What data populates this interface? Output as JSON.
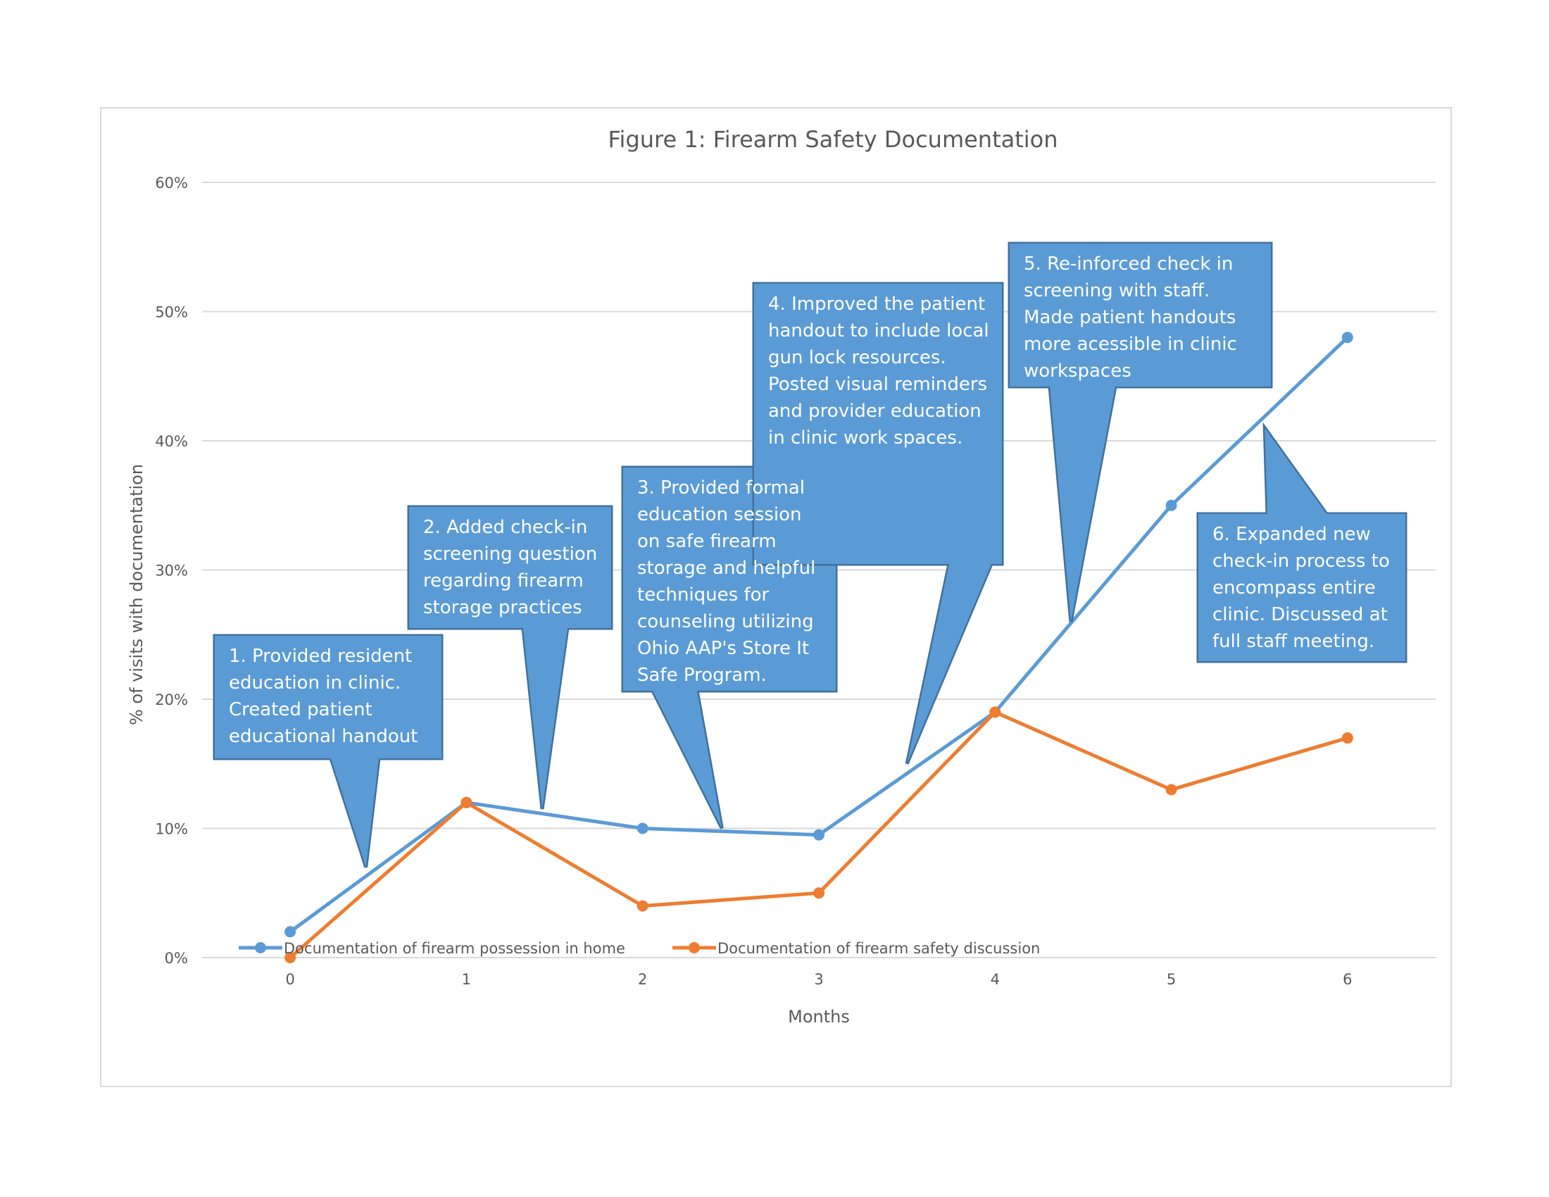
{
  "chart_data": {
    "type": "line",
    "title": "Figure 1: Firearm Safety Documentation",
    "xlabel": "Months",
    "ylabel": "% of visits with documentation",
    "x": [
      0,
      1,
      2,
      3,
      4,
      5,
      6
    ],
    "xlim": [
      -0.5,
      6.5
    ],
    "ylim": [
      0,
      0.6
    ],
    "y_ticks": [
      0,
      0.1,
      0.2,
      0.3,
      0.4,
      0.5,
      0.6
    ],
    "y_tick_labels": [
      "0%",
      "10%",
      "20%",
      "30%",
      "40%",
      "50%",
      "60%"
    ],
    "x_tick_labels": [
      "0",
      "1",
      "2",
      "3",
      "4",
      "5",
      "6"
    ],
    "grid": "horizontal",
    "legend_position": "bottom",
    "series": [
      {
        "name": "Documentation of firearm possession in home",
        "color": "#5b9bd5",
        "values": [
          0.02,
          0.12,
          0.1,
          0.095,
          0.19,
          0.35,
          0.48
        ]
      },
      {
        "name": "Documentation of firearm safety discussion",
        "color": "#ed7d31",
        "values": [
          0.0,
          0.12,
          0.04,
          0.05,
          0.19,
          0.13,
          0.17
        ]
      }
    ],
    "annotations": [
      {
        "text": "1. Provided resident\neducation in clinic.\nCreated patient\neducational handout",
        "month": 0.43,
        "value": 0.07
      },
      {
        "text": "2. Added check-in\nscreening question\nregarding firearm\nstorage practices",
        "month": 1.43,
        "value": 0.115
      },
      {
        "text": "3. Provided formal\neducation session\non safe firearm\nstorage and helpful\ntechniques for\ncounseling utilizing\nOhio AAP's Store It\nSafe Program.",
        "month": 2.45,
        "value": 0.1
      },
      {
        "text": "4. Improved the patient\nhandout to include local\ngun lock resources.\nPosted visual reminders\nand provider education\nin clinic work spaces.",
        "month": 3.5,
        "value": 0.15
      },
      {
        "text": "5. Re-inforced check in\nscreening with staff.\nMade patient handouts\nmore acessible in clinic\nworkspaces",
        "month": 4.43,
        "value": 0.26
      },
      {
        "text": "6. Expanded new\ncheck-in process to\nencompass entire\nclinic. Discussed at\nfull staff meeting.",
        "month": 5.53,
        "value": 0.41
      }
    ],
    "callout_color": "#5b9bd5",
    "callout_border": "#41719c"
  }
}
